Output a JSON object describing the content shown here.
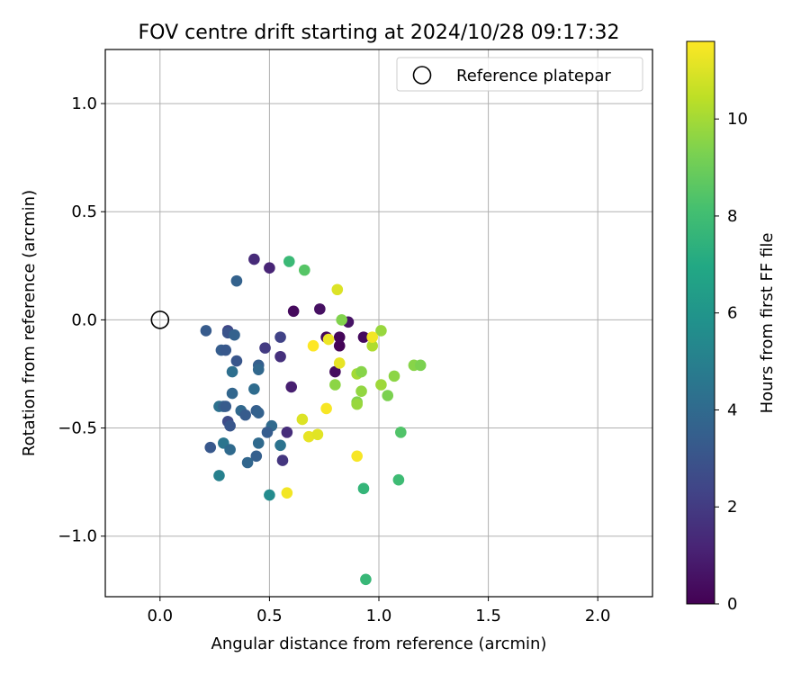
{
  "chart_data": {
    "type": "scatter",
    "title": "FOV centre drift starting at 2024/10/28 09:17:32",
    "xlabel": "Angular distance from reference (arcmin)",
    "ylabel": "Rotation from reference (arcmin)",
    "xlim": [
      -0.25,
      2.25
    ],
    "ylim": [
      -1.28,
      1.25
    ],
    "xticks": [
      0.0,
      0.5,
      1.0,
      1.5,
      2.0
    ],
    "xtick_labels": [
      "0.0",
      "0.5",
      "1.0",
      "1.5",
      "2.0"
    ],
    "yticks": [
      1.0,
      0.5,
      0.0,
      -0.5,
      -1.0
    ],
    "ytick_labels": [
      "1.0",
      "0.5",
      "0.0",
      "−0.5",
      "−1.0"
    ],
    "grid": true,
    "legend": {
      "position": "upper right",
      "entries": [
        "Reference platepar"
      ]
    },
    "reference_point": {
      "x": 0.0,
      "y": 0.0
    },
    "colorbar": {
      "label": "Hours from first FF file",
      "colormap": "viridis",
      "range": [
        0,
        11.6
      ],
      "ticks": [
        0,
        2,
        4,
        6,
        8,
        10
      ],
      "tick_labels": [
        "0",
        "2",
        "4",
        "6",
        "8",
        "10"
      ]
    },
    "points": [
      {
        "x": 0.61,
        "y": 0.04,
        "c": 0.3
      },
      {
        "x": 0.73,
        "y": 0.05,
        "c": 0.5
      },
      {
        "x": 0.76,
        "y": -0.08,
        "c": 0.2
      },
      {
        "x": 0.8,
        "y": -0.24,
        "c": 0.4
      },
      {
        "x": 0.82,
        "y": -0.12,
        "c": 0.1
      },
      {
        "x": 0.82,
        "y": -0.08,
        "c": 0.2
      },
      {
        "x": 0.86,
        "y": -0.01,
        "c": 0.6
      },
      {
        "x": 0.93,
        "y": -0.08,
        "c": 0.3
      },
      {
        "x": 0.6,
        "y": -0.31,
        "c": 1.0
      },
      {
        "x": 0.5,
        "y": 0.24,
        "c": 1.2
      },
      {
        "x": 0.43,
        "y": 0.28,
        "c": 1.4
      },
      {
        "x": 0.58,
        "y": -0.52,
        "c": 1.5
      },
      {
        "x": 0.56,
        "y": -0.65,
        "c": 1.8
      },
      {
        "x": 0.55,
        "y": -0.17,
        "c": 1.6
      },
      {
        "x": 0.48,
        "y": -0.13,
        "c": 2.0
      },
      {
        "x": 0.55,
        "y": -0.08,
        "c": 2.3
      },
      {
        "x": 0.35,
        "y": 0.18,
        "c": 3.6
      },
      {
        "x": 0.21,
        "y": -0.05,
        "c": 3.3
      },
      {
        "x": 0.31,
        "y": -0.05,
        "c": 2.4
      },
      {
        "x": 0.31,
        "y": -0.06,
        "c": 3.0
      },
      {
        "x": 0.34,
        "y": -0.07,
        "c": 3.6
      },
      {
        "x": 0.28,
        "y": -0.14,
        "c": 3.4
      },
      {
        "x": 0.3,
        "y": -0.14,
        "c": 3.2
      },
      {
        "x": 0.35,
        "y": -0.19,
        "c": 3.1
      },
      {
        "x": 0.45,
        "y": -0.21,
        "c": 3.5
      },
      {
        "x": 0.45,
        "y": -0.23,
        "c": 3.9
      },
      {
        "x": 0.33,
        "y": -0.24,
        "c": 4.2
      },
      {
        "x": 0.43,
        "y": -0.32,
        "c": 4.1
      },
      {
        "x": 0.33,
        "y": -0.34,
        "c": 3.8
      },
      {
        "x": 0.27,
        "y": -0.4,
        "c": 4.3
      },
      {
        "x": 0.29,
        "y": -0.4,
        "c": 3.7
      },
      {
        "x": 0.3,
        "y": -0.4,
        "c": 3.3
      },
      {
        "x": 0.37,
        "y": -0.42,
        "c": 3.9
      },
      {
        "x": 0.39,
        "y": -0.44,
        "c": 3.3
      },
      {
        "x": 0.44,
        "y": -0.42,
        "c": 3.5
      },
      {
        "x": 0.45,
        "y": -0.43,
        "c": 3.6
      },
      {
        "x": 0.31,
        "y": -0.47,
        "c": 2.6
      },
      {
        "x": 0.32,
        "y": -0.49,
        "c": 3.1
      },
      {
        "x": 0.51,
        "y": -0.49,
        "c": 4.0
      },
      {
        "x": 0.49,
        "y": -0.52,
        "c": 3.4
      },
      {
        "x": 0.45,
        "y": -0.57,
        "c": 4.0
      },
      {
        "x": 0.55,
        "y": -0.58,
        "c": 4.4
      },
      {
        "x": 0.23,
        "y": -0.59,
        "c": 3.2
      },
      {
        "x": 0.29,
        "y": -0.57,
        "c": 4.5
      },
      {
        "x": 0.32,
        "y": -0.6,
        "c": 4.0
      },
      {
        "x": 0.44,
        "y": -0.63,
        "c": 3.5
      },
      {
        "x": 0.4,
        "y": -0.66,
        "c": 3.8
      },
      {
        "x": 0.27,
        "y": -0.72,
        "c": 5.0
      },
      {
        "x": 0.5,
        "y": -0.81,
        "c": 5.5
      },
      {
        "x": 0.59,
        "y": 0.27,
        "c": 7.8
      },
      {
        "x": 0.66,
        "y": 0.23,
        "c": 8.5
      },
      {
        "x": 0.93,
        "y": -0.78,
        "c": 7.6
      },
      {
        "x": 1.09,
        "y": -0.74,
        "c": 7.9
      },
      {
        "x": 1.1,
        "y": -0.52,
        "c": 8.4
      },
      {
        "x": 0.94,
        "y": -1.2,
        "c": 7.7
      },
      {
        "x": 0.83,
        "y": 0.0,
        "c": 9.4
      },
      {
        "x": 1.01,
        "y": -0.05,
        "c": 9.8
      },
      {
        "x": 0.97,
        "y": -0.12,
        "c": 10.2
      },
      {
        "x": 0.8,
        "y": -0.3,
        "c": 9.6
      },
      {
        "x": 0.9,
        "y": -0.25,
        "c": 10.0
      },
      {
        "x": 0.92,
        "y": -0.24,
        "c": 9.5
      },
      {
        "x": 0.92,
        "y": -0.33,
        "c": 9.7
      },
      {
        "x": 1.01,
        "y": -0.3,
        "c": 9.9
      },
      {
        "x": 1.07,
        "y": -0.26,
        "c": 9.6
      },
      {
        "x": 1.04,
        "y": -0.35,
        "c": 9.3
      },
      {
        "x": 0.9,
        "y": -0.38,
        "c": 9.4
      },
      {
        "x": 0.9,
        "y": -0.39,
        "c": 9.8
      },
      {
        "x": 1.16,
        "y": -0.21,
        "c": 9.5
      },
      {
        "x": 1.19,
        "y": -0.21,
        "c": 9.3
      },
      {
        "x": 0.81,
        "y": 0.14,
        "c": 11.0
      },
      {
        "x": 0.7,
        "y": -0.12,
        "c": 11.6
      },
      {
        "x": 0.77,
        "y": -0.09,
        "c": 11.3
      },
      {
        "x": 0.82,
        "y": -0.2,
        "c": 11.2
      },
      {
        "x": 0.97,
        "y": -0.08,
        "c": 11.4
      },
      {
        "x": 0.76,
        "y": -0.41,
        "c": 11.5
      },
      {
        "x": 0.65,
        "y": -0.46,
        "c": 11.0
      },
      {
        "x": 0.68,
        "y": -0.54,
        "c": 11.2
      },
      {
        "x": 0.72,
        "y": -0.53,
        "c": 11.1
      },
      {
        "x": 0.9,
        "y": -0.63,
        "c": 11.5
      },
      {
        "x": 0.58,
        "y": -0.8,
        "c": 11.4
      }
    ]
  }
}
